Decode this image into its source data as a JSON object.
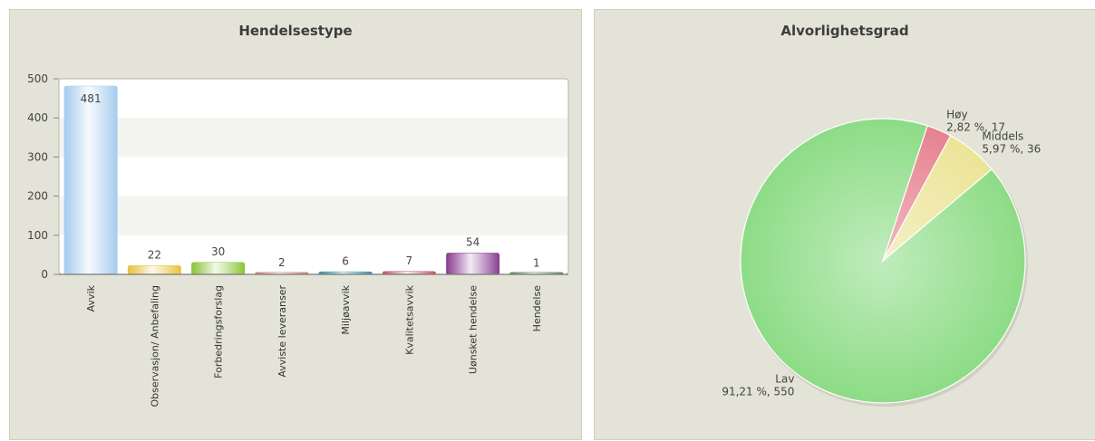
{
  "chart_data": [
    {
      "type": "bar",
      "title": "Hendelsestype",
      "categories": [
        "Avvik",
        "Observasjon/ Anbefaling",
        "Forbedringsforslag",
        "Avviste leveranser",
        "Miljøavvik",
        "Kvalitetsavvik",
        "Uønsket hendelse",
        "Hendelse"
      ],
      "values": [
        481,
        22,
        30,
        2,
        6,
        7,
        54,
        1
      ],
      "value_labels": [
        "481",
        "22",
        "30",
        "2",
        "6",
        "7",
        "54",
        "1"
      ],
      "colors": [
        "#a6cdee",
        "#e8c23e",
        "#8dc43a",
        "#d2806f",
        "#3b8fa8",
        "#c9545e",
        "#8a3f92",
        "#5d8a5a"
      ],
      "yticks": [
        "0",
        "100",
        "200",
        "300",
        "400",
        "500"
      ],
      "ylim": [
        0,
        500
      ],
      "grid": true,
      "xlabel": "",
      "ylabel": ""
    },
    {
      "type": "pie",
      "title": "Alvorlighetsgrad",
      "slices": [
        {
          "name": "Lav",
          "label": "Lav",
          "value_label": "91,21 %, 550",
          "percent": 91.21,
          "value": 550,
          "color": "#8ddc86"
        },
        {
          "name": "Høy",
          "label": "Høy",
          "value_label": "2,82 %, 17",
          "percent": 2.82,
          "value": 17,
          "color": "#e6828f"
        },
        {
          "name": "Middels",
          "label": "Middels",
          "value_label": "5,97 %, 36",
          "percent": 5.97,
          "value": 36,
          "color": "#ece497"
        }
      ]
    }
  ]
}
